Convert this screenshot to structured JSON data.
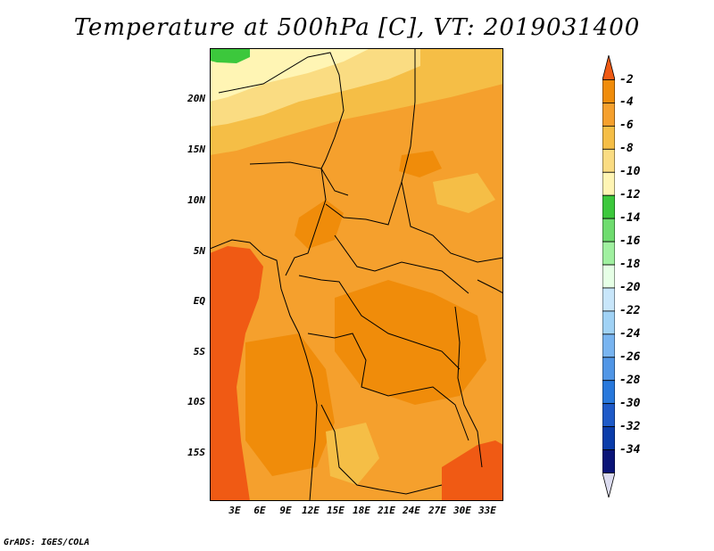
{
  "title": "Temperature at 500hPa [C], VT: 2019031400",
  "credit": "GrADS: IGES/COLA",
  "lat_labels": [
    "20N",
    "15N",
    "10N",
    "5N",
    "EQ",
    "5S",
    "10S",
    "15S"
  ],
  "lon_labels": [
    "3E",
    "6E",
    "9E",
    "12E",
    "15E",
    "18E",
    "21E",
    "24E",
    "27E",
    "30E",
    "33E"
  ],
  "colorbar": {
    "labels": [
      "-2",
      "-4",
      "-6",
      "-8",
      "-10",
      "-12",
      "-14",
      "-16",
      "-18",
      "-20",
      "-22",
      "-24",
      "-26",
      "-28",
      "-30",
      "-32",
      "-34"
    ],
    "colors": [
      "#f05a14",
      "#f08c0a",
      "#f5a02d",
      "#f5be46",
      "#fadc82",
      "#fff5b4",
      "#3cc83c",
      "#6edc6e",
      "#a0f0a0",
      "#e6ffe6",
      "#c8e6fa",
      "#a0d2f5",
      "#78b4f0",
      "#5096e6",
      "#2878dc",
      "#1e5ac8",
      "#0a3caa",
      "#0a1478",
      "#dcdcf0"
    ]
  }
}
